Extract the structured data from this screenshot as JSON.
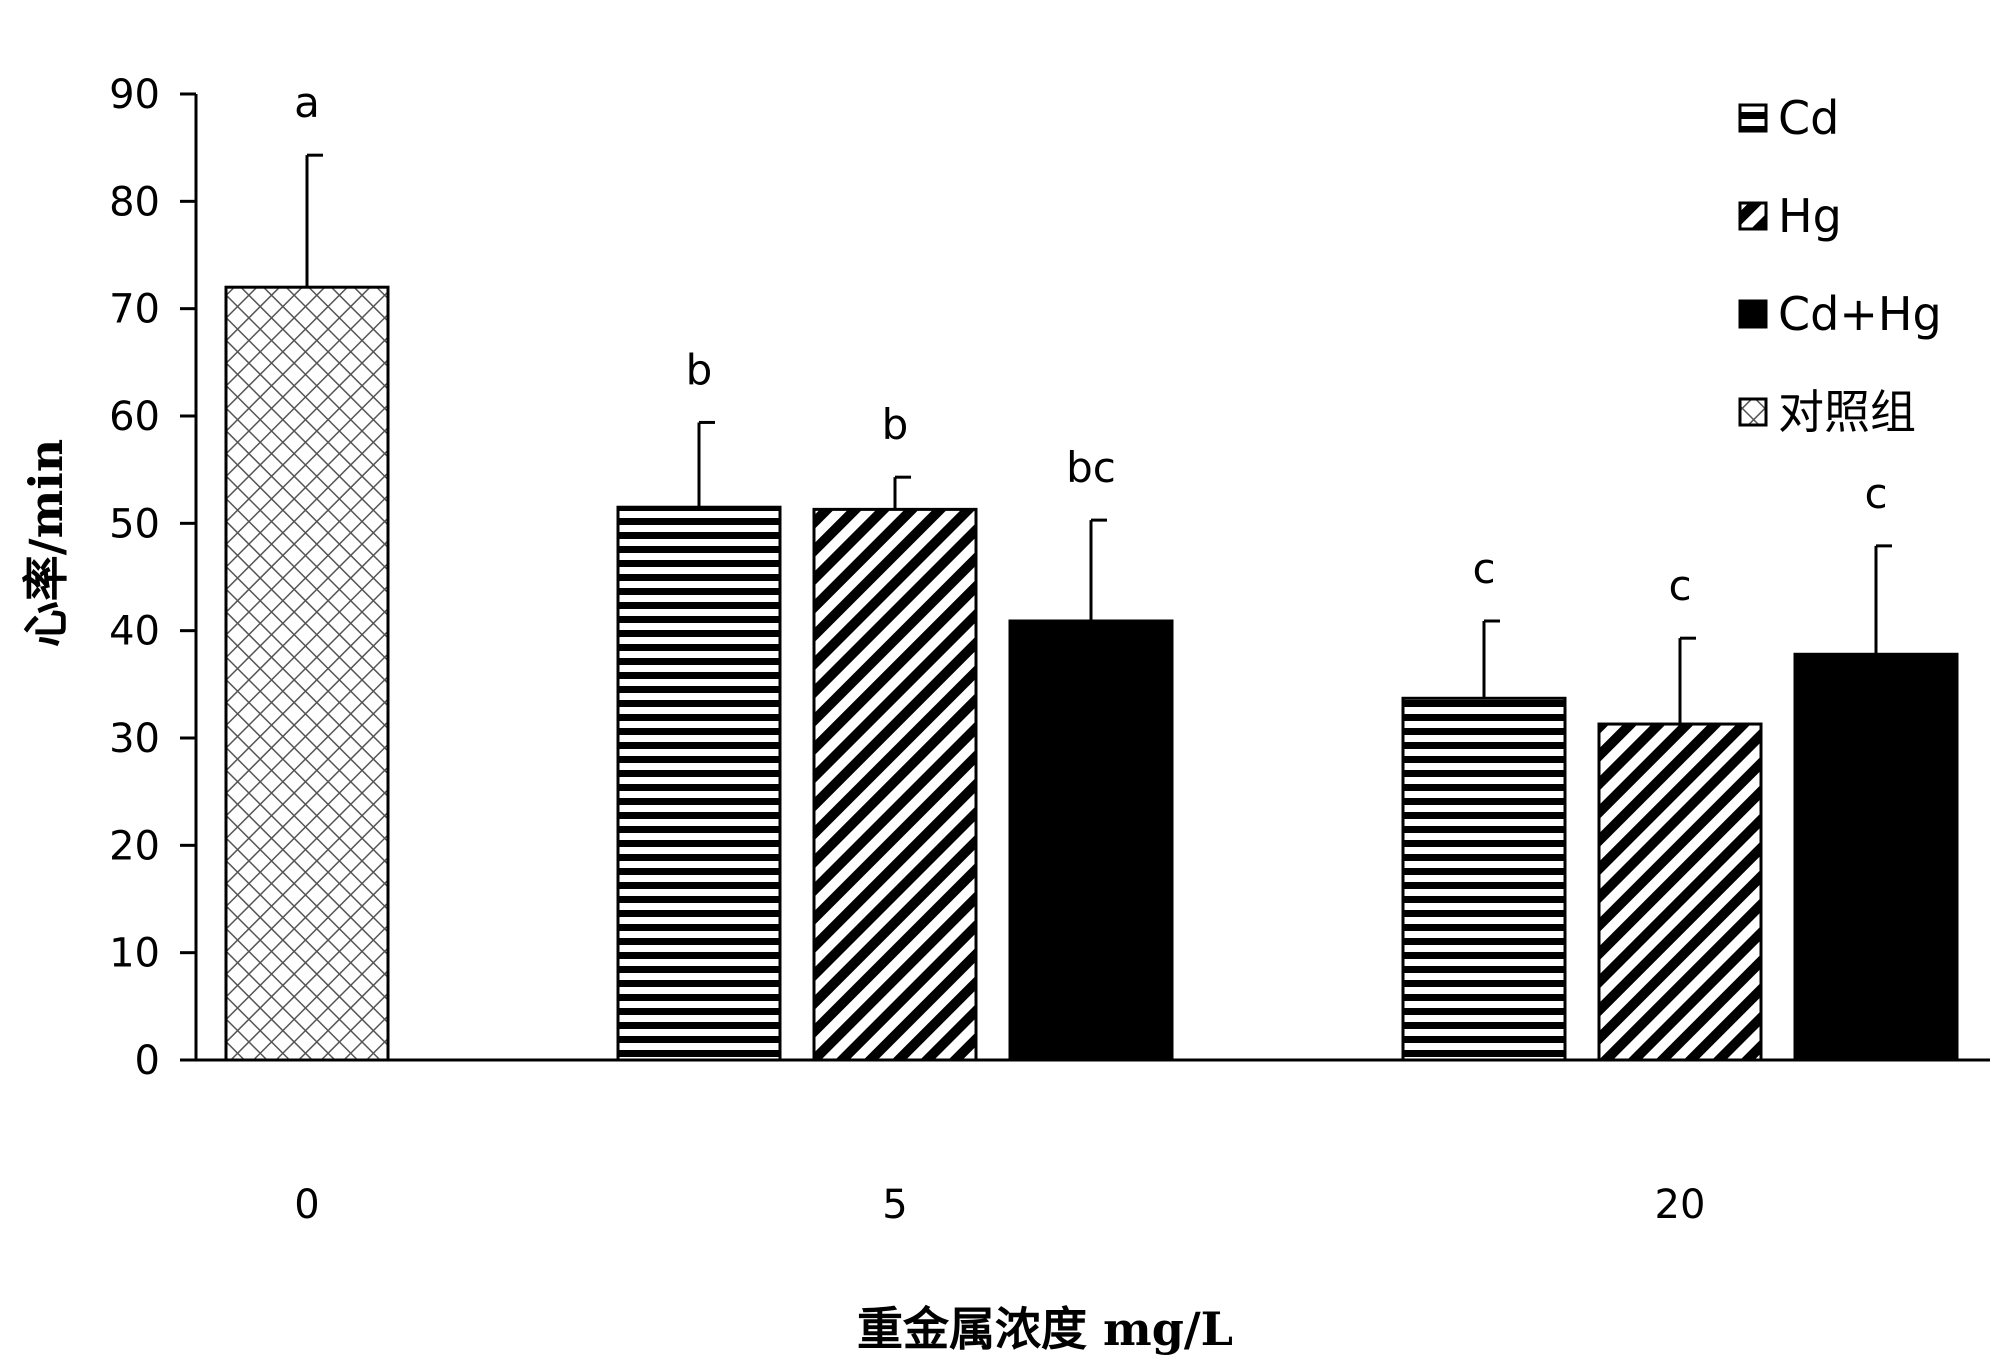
{
  "chart_data": {
    "type": "bar",
    "xlabel": "重金属浓度  mg/L",
    "ylabel": "心率/min",
    "ylim": [
      0,
      90
    ],
    "yticks": [
      0,
      10,
      20,
      30,
      40,
      50,
      60,
      70,
      80,
      90
    ],
    "grid": false,
    "legend_position": "top-right",
    "categories": [
      "0",
      "5",
      "20"
    ],
    "series": [
      {
        "name": "Cd",
        "pattern": "horizontal-stripes",
        "values": [
          null,
          51.5,
          33.7
        ],
        "errors": [
          null,
          7.9,
          7.2
        ],
        "labels": [
          "",
          "b",
          "c"
        ]
      },
      {
        "name": "Hg",
        "pattern": "diagonal-stripes",
        "values": [
          null,
          51.3,
          31.3
        ],
        "errors": [
          null,
          3.0,
          8.0
        ],
        "labels": [
          "",
          "b",
          "c"
        ]
      },
      {
        "name": "Cd+Hg",
        "pattern": "solid",
        "values": [
          null,
          40.9,
          37.8
        ],
        "errors": [
          null,
          9.4,
          10.1
        ],
        "labels": [
          "",
          "bc",
          "c"
        ]
      },
      {
        "name": "对照组",
        "pattern": "crosshatch",
        "values": [
          72.0,
          null,
          null
        ],
        "errors": [
          12.3,
          null,
          null
        ],
        "labels": [
          "a",
          "",
          ""
        ]
      }
    ],
    "colors": {
      "bar_fill": "#000000",
      "background": "#ffffff",
      "stroke": "#000000"
    }
  }
}
